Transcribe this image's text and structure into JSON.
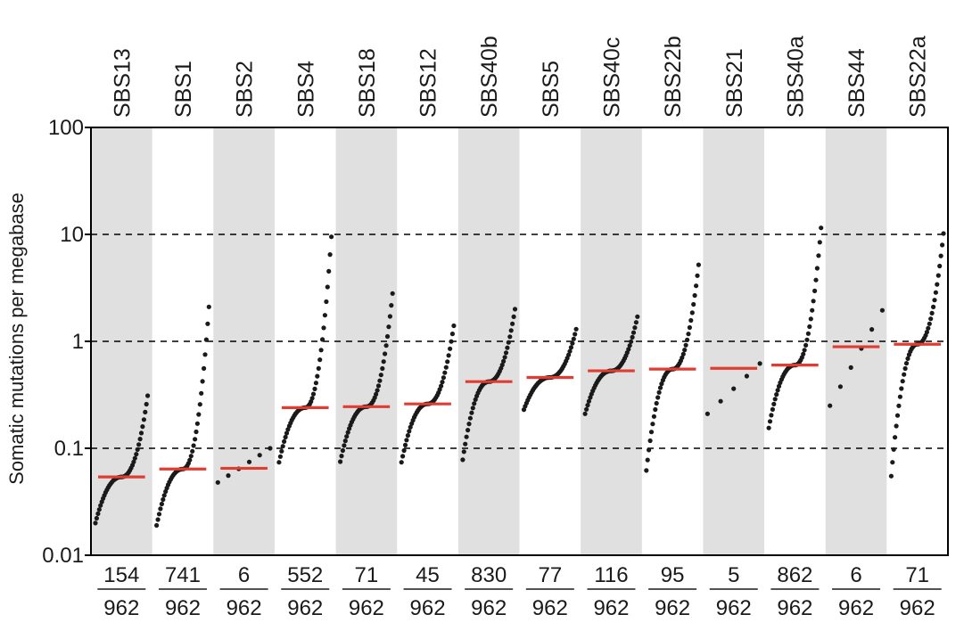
{
  "chart_data": {
    "type": "scatter",
    "title": "",
    "ylabel": "Somatic mutations per megabase",
    "xlabel": "",
    "yscale": "log",
    "ylim": [
      0.01,
      100
    ],
    "yticks": [
      0.01,
      0.1,
      1,
      10,
      100
    ],
    "ytick_labels": [
      "0.01",
      "0.1",
      "1",
      "10",
      "100"
    ],
    "dashed_gridlines_at": [
      0.1,
      1,
      10
    ],
    "alternating_shaded_columns": true,
    "colors": {
      "points": "#1a1a1a",
      "median": "#e03c31",
      "shade": "#e0e0e0",
      "grid": "#000000"
    },
    "series": [
      {
        "name": "SBS13",
        "mutated": "154",
        "total": "962",
        "median": 0.054,
        "min": 0.02,
        "max": 0.31
      },
      {
        "name": "SBS1",
        "mutated": "741",
        "total": "962",
        "median": 0.064,
        "min": 0.019,
        "max": 2.1
      },
      {
        "name": "SBS2",
        "mutated": "6",
        "total": "962",
        "median": 0.065,
        "min": 0.048,
        "max": 0.1
      },
      {
        "name": "SBS4",
        "mutated": "552",
        "total": "962",
        "median": 0.24,
        "min": 0.074,
        "max": 9.5
      },
      {
        "name": "SBS18",
        "mutated": "71",
        "total": "962",
        "median": 0.245,
        "min": 0.075,
        "max": 2.8
      },
      {
        "name": "SBS12",
        "mutated": "45",
        "total": "962",
        "median": 0.26,
        "min": 0.074,
        "max": 1.4
      },
      {
        "name": "SBS40b",
        "mutated": "830",
        "total": "962",
        "median": 0.42,
        "min": 0.078,
        "max": 2.0
      },
      {
        "name": "SBS5",
        "mutated": "77",
        "total": "962",
        "median": 0.46,
        "min": 0.23,
        "max": 1.3
      },
      {
        "name": "SBS40c",
        "mutated": "116",
        "total": "962",
        "median": 0.53,
        "min": 0.21,
        "max": 1.7
      },
      {
        "name": "SBS22b",
        "mutated": "95",
        "total": "962",
        "median": 0.55,
        "min": 0.062,
        "max": 5.2
      },
      {
        "name": "SBS21",
        "mutated": "5",
        "total": "962",
        "median": 0.56,
        "min": 0.21,
        "max": 0.62
      },
      {
        "name": "SBS40a",
        "mutated": "862",
        "total": "962",
        "median": 0.6,
        "min": 0.155,
        "max": 11.5
      },
      {
        "name": "SBS44",
        "mutated": "6",
        "total": "962",
        "median": 0.89,
        "min": 0.25,
        "max": 1.95
      },
      {
        "name": "SBS22a",
        "mutated": "71",
        "total": "962",
        "median": 0.94,
        "min": 0.055,
        "max": 10.2
      }
    ]
  }
}
